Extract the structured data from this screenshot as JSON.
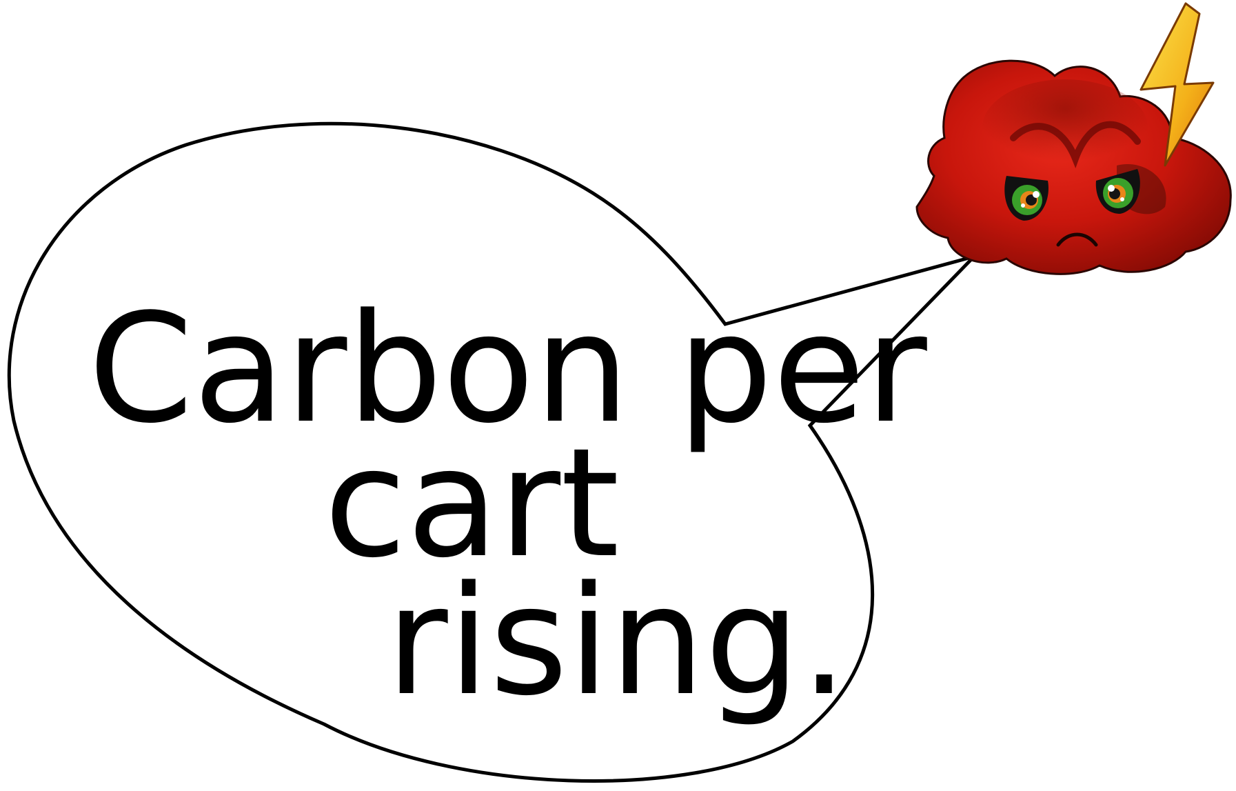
{
  "speech_bubble": {
    "line1": "Carbon per",
    "line2": "cart",
    "line3": "rising."
  },
  "character": {
    "icon": "angry-red-cloud-icon",
    "accessory_icon": "lightning-bolt-icon"
  },
  "colors": {
    "background": "#ffffff",
    "bubble_fill": "#ffffff",
    "bubble_outline": "#000000",
    "text": "#000000",
    "cloud_red": "#d01a0f",
    "cloud_dark": "#8a0c05",
    "bolt_yellow": "#f7c51e",
    "bolt_orange": "#e58a0c",
    "eye_green": "#3aa02a",
    "eye_orange": "#e8861a"
  }
}
